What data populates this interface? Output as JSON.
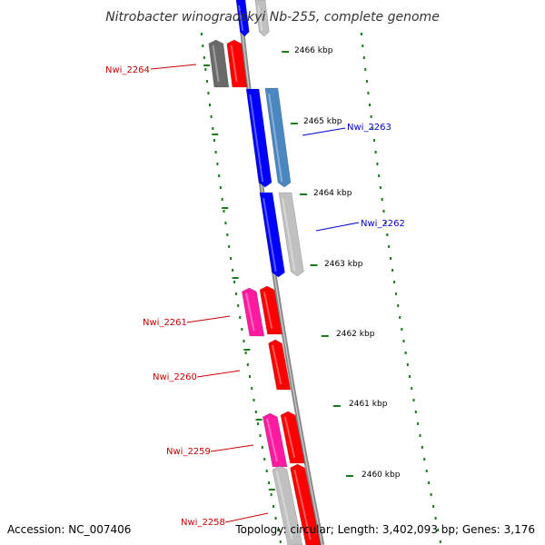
{
  "title": "Nitrobacter winogradskyi Nb-255, complete genome",
  "footer": {
    "accession": "Accession: NC_007406",
    "stats": "Topology: circular; Length: 3,402,093 bp; Genes: 3,176"
  },
  "colors": {
    "backbone": "#888888",
    "backbone_light": "#cfcfcf",
    "tick_green": "#1a7a1a",
    "forward_label": "#cc0000",
    "reverse_label": "#0000cc",
    "red": "#ff0000",
    "magenta": "#ff1aa0",
    "blue": "#0000ff",
    "steel_blue": "#4a86c0",
    "gray": "#c0c0c0",
    "dark_gray": "#6a6a6a"
  },
  "ruler": [
    "2466 kbp",
    "2465 kbp",
    "2464 kbp",
    "2463 kbp",
    "2462 kbp",
    "2461 kbp",
    "2460 kbp"
  ],
  "gene_labels": [
    "Nwi_2264",
    "Nwi_2263",
    "Nwi_2262",
    "Nwi_2261",
    "Nwi_2260",
    "Nwi_2259",
    "Nwi_2258"
  ],
  "features": [
    {
      "color": "blue",
      "strand": "reverse"
    },
    {
      "color": "gray",
      "strand": "reverse"
    },
    {
      "color": "dark_gray",
      "strand": "forward"
    },
    {
      "color": "red",
      "strand": "forward"
    },
    {
      "color": "blue",
      "strand": "reverse"
    },
    {
      "color": "steel_blue",
      "strand": "reverse"
    },
    {
      "color": "blue",
      "strand": "reverse"
    },
    {
      "color": "gray",
      "strand": "reverse"
    },
    {
      "color": "magenta",
      "strand": "forward"
    },
    {
      "color": "red",
      "strand": "forward"
    },
    {
      "color": "red",
      "strand": "forward"
    },
    {
      "color": "magenta",
      "strand": "forward"
    },
    {
      "color": "red",
      "strand": "forward"
    },
    {
      "color": "gray",
      "strand": "forward"
    },
    {
      "color": "red",
      "strand": "forward"
    }
  ]
}
